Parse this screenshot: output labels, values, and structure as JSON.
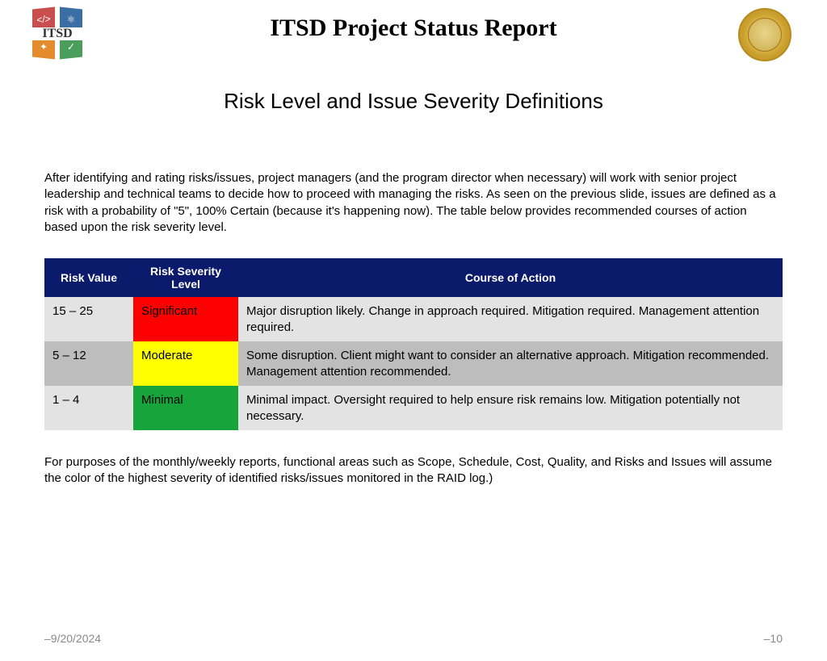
{
  "header": {
    "title": "ITSD Project Status Report",
    "itsd_label": "ITSD"
  },
  "subtitle": "Risk Level and Issue Severity Definitions",
  "intro": "After identifying and rating risks/issues, project managers (and the program director when necessary) will work with senior project leadership and technical teams to decide how to proceed with managing the risks. As seen on the previous slide, issues are defined as a risk with a probability of \"5\", 100% Certain (because it's happening now). The table below provides recommended courses of action based upon the risk severity level.",
  "table": {
    "columns": [
      "Risk Value",
      "Risk Severity Level",
      "Course of Action"
    ],
    "header_bg": "#0b1a6b",
    "header_fg": "#ffffff",
    "row_odd_bg": "#e3e3e3",
    "row_even_bg": "#bdbdbd",
    "rows": [
      {
        "value": "15 – 25",
        "severity": "Significant",
        "severity_bg": "#ff0000",
        "severity_fg": "#000000",
        "action": "Major disruption likely. Change in approach required. Mitigation required. Management attention required."
      },
      {
        "value": "5 – 12",
        "severity": "Moderate",
        "severity_bg": "#ffff00",
        "severity_fg": "#000000",
        "action": "Some disruption. Client might want to consider an alternative approach. Mitigation recommended. Management attention recommended."
      },
      {
        "value": "1 – 4",
        "severity": "Minimal",
        "severity_bg": "#17a43b",
        "severity_fg": "#000000",
        "action": "Minimal impact. Oversight required to help ensure risk remains low. Mitigation potentially not necessary."
      }
    ]
  },
  "outro": "For purposes of the monthly/weekly reports, functional areas such as Scope, Schedule, Cost, Quality, and Risks and Issues will assume the color of the highest severity of identified risks/issues monitored in the RAID log.)",
  "footer": {
    "date": "9/20/2024",
    "page": "10",
    "dash": "–"
  },
  "logo_colors": {
    "q1": "#c94f4f",
    "q2": "#3b6ea5",
    "q3": "#e38b2d",
    "q4": "#4a9d5b"
  }
}
